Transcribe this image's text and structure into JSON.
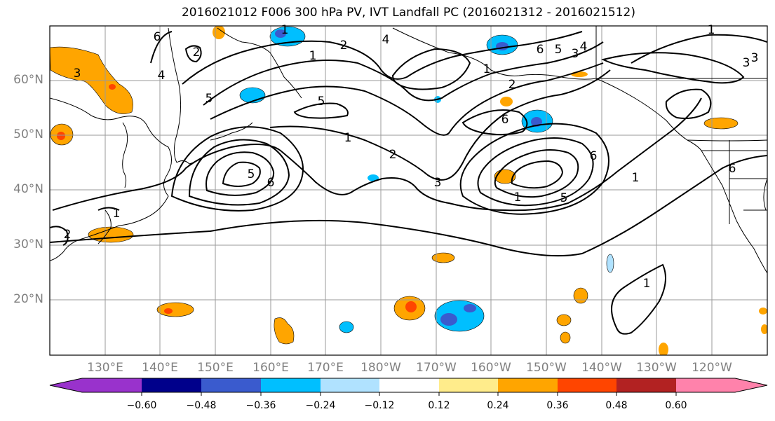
{
  "title": "2016021012 F006 300 hPa PV, IVT Landfall PC (2016021312 - 2016021512)",
  "lat_labels": [
    "60°N",
    "50°N",
    "40°N",
    "30°N",
    "20°N"
  ],
  "lon_labels": [
    "130°E",
    "140°E",
    "150°E",
    "160°E",
    "170°E",
    "180°W",
    "170°W",
    "160°W",
    "150°W",
    "140°W",
    "130°W",
    "120°W"
  ],
  "colorbar": {
    "ticks": [
      "−0.60",
      "−0.48",
      "−0.36",
      "−0.24",
      "−0.12",
      "0.12",
      "0.24",
      "0.36",
      "0.48",
      "0.60"
    ],
    "colors": [
      "#9932CC",
      "#00008B",
      "#3A5BCE",
      "#00BFFF",
      "#B0E2FF",
      "#FFFFFF",
      "#FFEC8B",
      "#FFA500",
      "#FF4500",
      "#B22222",
      "#FF82AB"
    ]
  },
  "contour_labels": [
    {
      "text": "3"
    },
    {
      "text": "4"
    },
    {
      "text": "5"
    },
    {
      "text": "6"
    },
    {
      "text": "5"
    },
    {
      "text": "1"
    },
    {
      "text": "6"
    },
    {
      "text": "5"
    },
    {
      "text": "1"
    },
    {
      "text": "2"
    },
    {
      "text": "3"
    },
    {
      "text": "6"
    },
    {
      "text": "1"
    },
    {
      "text": "5"
    },
    {
      "text": "6"
    },
    {
      "text": "1"
    },
    {
      "text": "2"
    },
    {
      "text": "1"
    },
    {
      "text": "2"
    },
    {
      "text": "1"
    },
    {
      "text": "2"
    },
    {
      "text": "4"
    },
    {
      "text": "6"
    },
    {
      "text": "5"
    },
    {
      "text": "3"
    },
    {
      "text": "4"
    },
    {
      "text": "2"
    },
    {
      "text": "3"
    },
    {
      "text": "3"
    },
    {
      "text": "1"
    },
    {
      "text": "1"
    },
    {
      "text": "6"
    },
    {
      "text": "1"
    }
  ]
}
